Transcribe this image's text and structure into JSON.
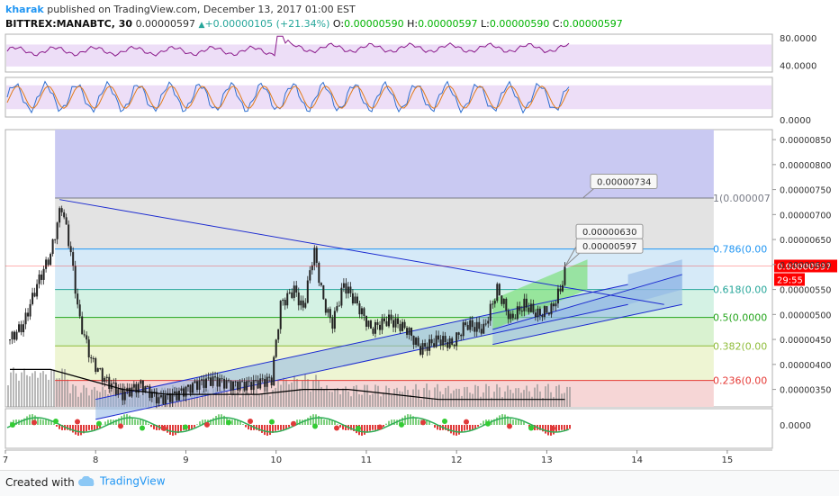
{
  "header": {
    "author": "kharak",
    "published": "published on TradingView.com, December 13, 2017 01:00 EST",
    "symbol": "BITTREX:MANABTC, 30",
    "last": "0.00000597",
    "change": "+0.00000105 (+21.34%)",
    "o_label": "O:",
    "o_value": "0.00000590",
    "h_label": "H:",
    "h_value": "0.00000597",
    "l_label": "L:",
    "l_value": "0.00000590",
    "c_label": "C:",
    "c_value": "0.00000597"
  },
  "footer": {
    "created": "Created with",
    "brand": "TradingView"
  },
  "colors": {
    "price_line": "#000000",
    "channel_fill": "#8fb6e6",
    "channel_line": "#1c2bd0",
    "green_fill": "#7ee07e",
    "current_price": "#ff0000",
    "rsi_line": "#8b1a8b",
    "rsi_band": "#e9d6f5"
  },
  "chart_data": [
    {
      "panel": "rsi",
      "type": "line",
      "y_ticks": [
        "80.0000",
        "40.0000"
      ],
      "ylim": [
        30,
        85
      ]
    },
    {
      "panel": "stoch",
      "type": "line",
      "y_ticks": [
        "0.0000"
      ],
      "ylim": [
        0,
        100
      ]
    },
    {
      "panel": "price",
      "type": "candlestick",
      "x_ticks": [
        "7",
        "8",
        "9",
        "10",
        "11",
        "12",
        "13",
        "14",
        "15"
      ],
      "x_values": [
        7,
        8,
        9,
        10,
        11,
        12,
        13,
        14,
        15
      ],
      "xlim": [
        7,
        15.5
      ],
      "ylim": [
        3.15e-06,
        8.7e-06
      ],
      "y_ticks": [
        "0.00000850",
        "0.00000800",
        "0.00000750",
        "0.00000700",
        "0.00000650",
        "0.00000600",
        "0.00000550",
        "0.00000500",
        "0.00000450",
        "0.00000400",
        "0.00000350"
      ],
      "y_tick_values": [
        8.5e-06,
        8e-06,
        7.5e-06,
        7e-06,
        6.5e-06,
        6e-06,
        5.5e-06,
        5e-06,
        4.5e-06,
        4e-06,
        3.5e-06
      ],
      "current_price": {
        "value": 5.97e-06,
        "label": "0.00000597",
        "countdown": "29:55"
      },
      "fib_levels": [
        {
          "level": "1",
          "label": "1(0.000007",
          "price": 7.33e-06,
          "color": "#787b86"
        },
        {
          "level": "0.786",
          "label": "0.786(0.00",
          "price": 6.31e-06,
          "color": "#2196f3"
        },
        {
          "level": "0.618",
          "label": "0.618(0.00",
          "price": 5.5e-06,
          "color": "#26a69a"
        },
        {
          "level": "0.5",
          "label": "0.5(0.0000",
          "price": 4.94e-06,
          "color": "#22a41a"
        },
        {
          "level": "0.382",
          "label": "0.382(0.00",
          "price": 4.37e-06,
          "color": "#8fbc3a"
        },
        {
          "level": "0.236",
          "label": "0.236(0.00",
          "price": 3.68e-06,
          "color": "#e53935"
        }
      ],
      "callouts": [
        {
          "label": "0.00000734",
          "price": 7.34e-06
        },
        {
          "label": "0.00000630",
          "price": 6.3e-06
        },
        {
          "label": "0.00000597",
          "price": 5.97e-06
        }
      ],
      "close_series": [
        {
          "x": 7.05,
          "y": 4.5e-06
        },
        {
          "x": 7.2,
          "y": 4.8e-06
        },
        {
          "x": 7.35,
          "y": 5.6e-06
        },
        {
          "x": 7.5,
          "y": 6.2e-06
        },
        {
          "x": 7.62,
          "y": 7.2e-06
        },
        {
          "x": 7.72,
          "y": 6.3e-06
        },
        {
          "x": 7.82,
          "y": 4.9e-06
        },
        {
          "x": 7.95,
          "y": 4.1e-06
        },
        {
          "x": 8.1,
          "y": 3.7e-06
        },
        {
          "x": 8.3,
          "y": 3.4e-06
        },
        {
          "x": 8.5,
          "y": 3.6e-06
        },
        {
          "x": 8.7,
          "y": 3.3e-06
        },
        {
          "x": 8.9,
          "y": 3.4e-06
        },
        {
          "x": 9.1,
          "y": 3.6e-06
        },
        {
          "x": 9.3,
          "y": 3.7e-06
        },
        {
          "x": 9.5,
          "y": 3.6e-06
        },
        {
          "x": 9.7,
          "y": 3.6e-06
        },
        {
          "x": 9.95,
          "y": 3.7e-06
        },
        {
          "x": 10.05,
          "y": 5.2e-06
        },
        {
          "x": 10.2,
          "y": 5.5e-06
        },
        {
          "x": 10.3,
          "y": 5.1e-06
        },
        {
          "x": 10.42,
          "y": 6.3e-06
        },
        {
          "x": 10.52,
          "y": 5.3e-06
        },
        {
          "x": 10.62,
          "y": 4.8e-06
        },
        {
          "x": 10.75,
          "y": 5.6e-06
        },
        {
          "x": 10.9,
          "y": 5.2e-06
        },
        {
          "x": 11.05,
          "y": 4.7e-06
        },
        {
          "x": 11.25,
          "y": 4.9e-06
        },
        {
          "x": 11.45,
          "y": 4.7e-06
        },
        {
          "x": 11.6,
          "y": 4.3e-06
        },
        {
          "x": 11.8,
          "y": 4.5e-06
        },
        {
          "x": 11.95,
          "y": 4.4e-06
        },
        {
          "x": 12.1,
          "y": 4.8e-06
        },
        {
          "x": 12.3,
          "y": 4.7e-06
        },
        {
          "x": 12.45,
          "y": 5.5e-06
        },
        {
          "x": 12.6,
          "y": 4.9e-06
        },
        {
          "x": 12.75,
          "y": 5.2e-06
        },
        {
          "x": 12.9,
          "y": 5e-06
        },
        {
          "x": 13.05,
          "y": 5.1e-06
        },
        {
          "x": 13.15,
          "y": 5.5e-06
        },
        {
          "x": 13.22,
          "y": 5.97e-06
        }
      ],
      "ma_series": [
        {
          "x": 7.05,
          "y": 3.9e-06
        },
        {
          "x": 7.5,
          "y": 3.9e-06
        },
        {
          "x": 7.9,
          "y": 3.7e-06
        },
        {
          "x": 8.3,
          "y": 3.5e-06
        },
        {
          "x": 8.8,
          "y": 3.4e-06
        },
        {
          "x": 9.3,
          "y": 3.4e-06
        },
        {
          "x": 9.8,
          "y": 3.4e-06
        },
        {
          "x": 10.3,
          "y": 3.5e-06
        },
        {
          "x": 10.8,
          "y": 3.5e-06
        },
        {
          "x": 11.3,
          "y": 3.4e-06
        },
        {
          "x": 11.8,
          "y": 3.3e-06
        },
        {
          "x": 12.3,
          "y": 3.3e-06
        },
        {
          "x": 12.8,
          "y": 3.3e-06
        },
        {
          "x": 13.2,
          "y": 3.3e-06
        }
      ],
      "trendlines": [
        {
          "name": "descending",
          "x1": 7.6,
          "y1": 7.3e-06,
          "x2": 14.3,
          "y2": 5.2e-06
        },
        {
          "name": "channel-upper-1",
          "x1": 8.0,
          "y1": 3.3e-06,
          "x2": 13.9,
          "y2": 5.6e-06
        },
        {
          "name": "channel-lower-1",
          "x1": 8.0,
          "y1": 2.9e-06,
          "x2": 13.9,
          "y2": 5.2e-06
        },
        {
          "name": "channel-upper-2",
          "x1": 12.4,
          "y1": 4.7e-06,
          "x2": 14.5,
          "y2": 5.8e-06
        },
        {
          "name": "channel-lower-2",
          "x1": 12.4,
          "y1": 4.4e-06,
          "x2": 14.5,
          "y2": 5.2e-06
        }
      ]
    },
    {
      "panel": "macd",
      "type": "histogram",
      "y_ticks": [
        "0.0000"
      ],
      "ylim": [
        -1,
        1
      ]
    }
  ]
}
